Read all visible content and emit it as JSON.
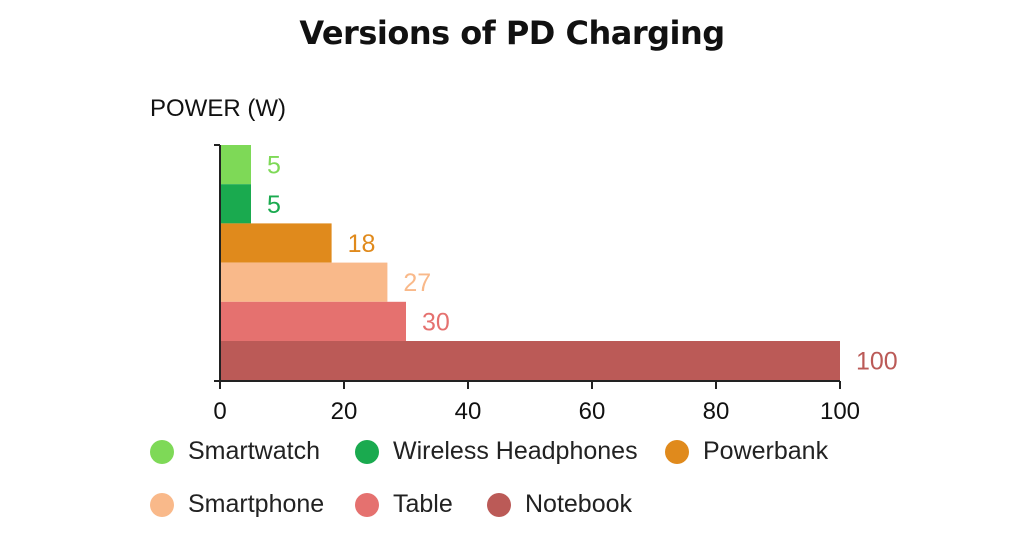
{
  "chart_data": {
    "type": "bar",
    "orientation": "horizontal",
    "title": "Versions of PD Charging",
    "ylabel": "POWER (W)",
    "xlabel": "",
    "xlim": [
      0,
      100
    ],
    "x_ticks": [
      0,
      20,
      40,
      60,
      80,
      100
    ],
    "grid": false,
    "legend_position": "bottom",
    "categories": [
      "Smartwatch",
      "Wireless Headphones",
      "Powerbank",
      "Smartphone",
      "Table",
      "Notebook"
    ],
    "values": [
      5,
      5,
      18,
      27,
      30,
      100
    ],
    "colors": [
      "#7ed957",
      "#1aaa4f",
      "#e08a1c",
      "#f9b98a",
      "#e5716f",
      "#bb5a57"
    ]
  }
}
